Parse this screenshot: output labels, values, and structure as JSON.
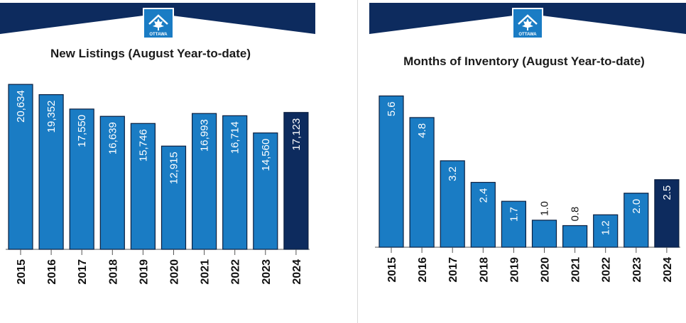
{
  "colors": {
    "banner": "#0d2b5e",
    "bar": "#1a7cc4",
    "bar_highlight": "#0d2b5e",
    "bar_border": "#0a1e3f",
    "logo_bg": "#1a7cc4"
  },
  "logo": {
    "text": "OTTAWA",
    "icon": "maple-leaf-house-icon"
  },
  "chart_data": [
    {
      "type": "bar",
      "title": "New Listings (August Year-to-date)",
      "categories": [
        "2015",
        "2016",
        "2017",
        "2018",
        "2019",
        "2020",
        "2021",
        "2022",
        "2023",
        "2024"
      ],
      "values": [
        20634,
        19352,
        17550,
        16639,
        15746,
        12915,
        16993,
        16714,
        14560,
        17123
      ],
      "labels": [
        "20,634",
        "19,352",
        "17,550",
        "16,639",
        "15,746",
        "12,915",
        "16,993",
        "16,714",
        "14,560",
        "17,123"
      ],
      "highlight_category": "2024",
      "ylim": [
        0,
        21000
      ],
      "grid": false,
      "legend": "none"
    },
    {
      "type": "bar",
      "title": "Months of Inventory   (August Year-to-date)",
      "categories": [
        "2015",
        "2016",
        "2017",
        "2018",
        "2019",
        "2020",
        "2021",
        "2022",
        "2023",
        "2024"
      ],
      "values": [
        5.6,
        4.8,
        3.2,
        2.4,
        1.7,
        1.0,
        0.8,
        1.2,
        2.0,
        2.5
      ],
      "labels": [
        "5.6",
        "4.8",
        "3.2",
        "2.4",
        "1.7",
        "1.0",
        "0.8",
        "1.2",
        "2.0",
        "2.5"
      ],
      "highlight_category": "2024",
      "ylim": [
        0,
        5.9
      ],
      "grid": false,
      "legend": "none"
    }
  ]
}
